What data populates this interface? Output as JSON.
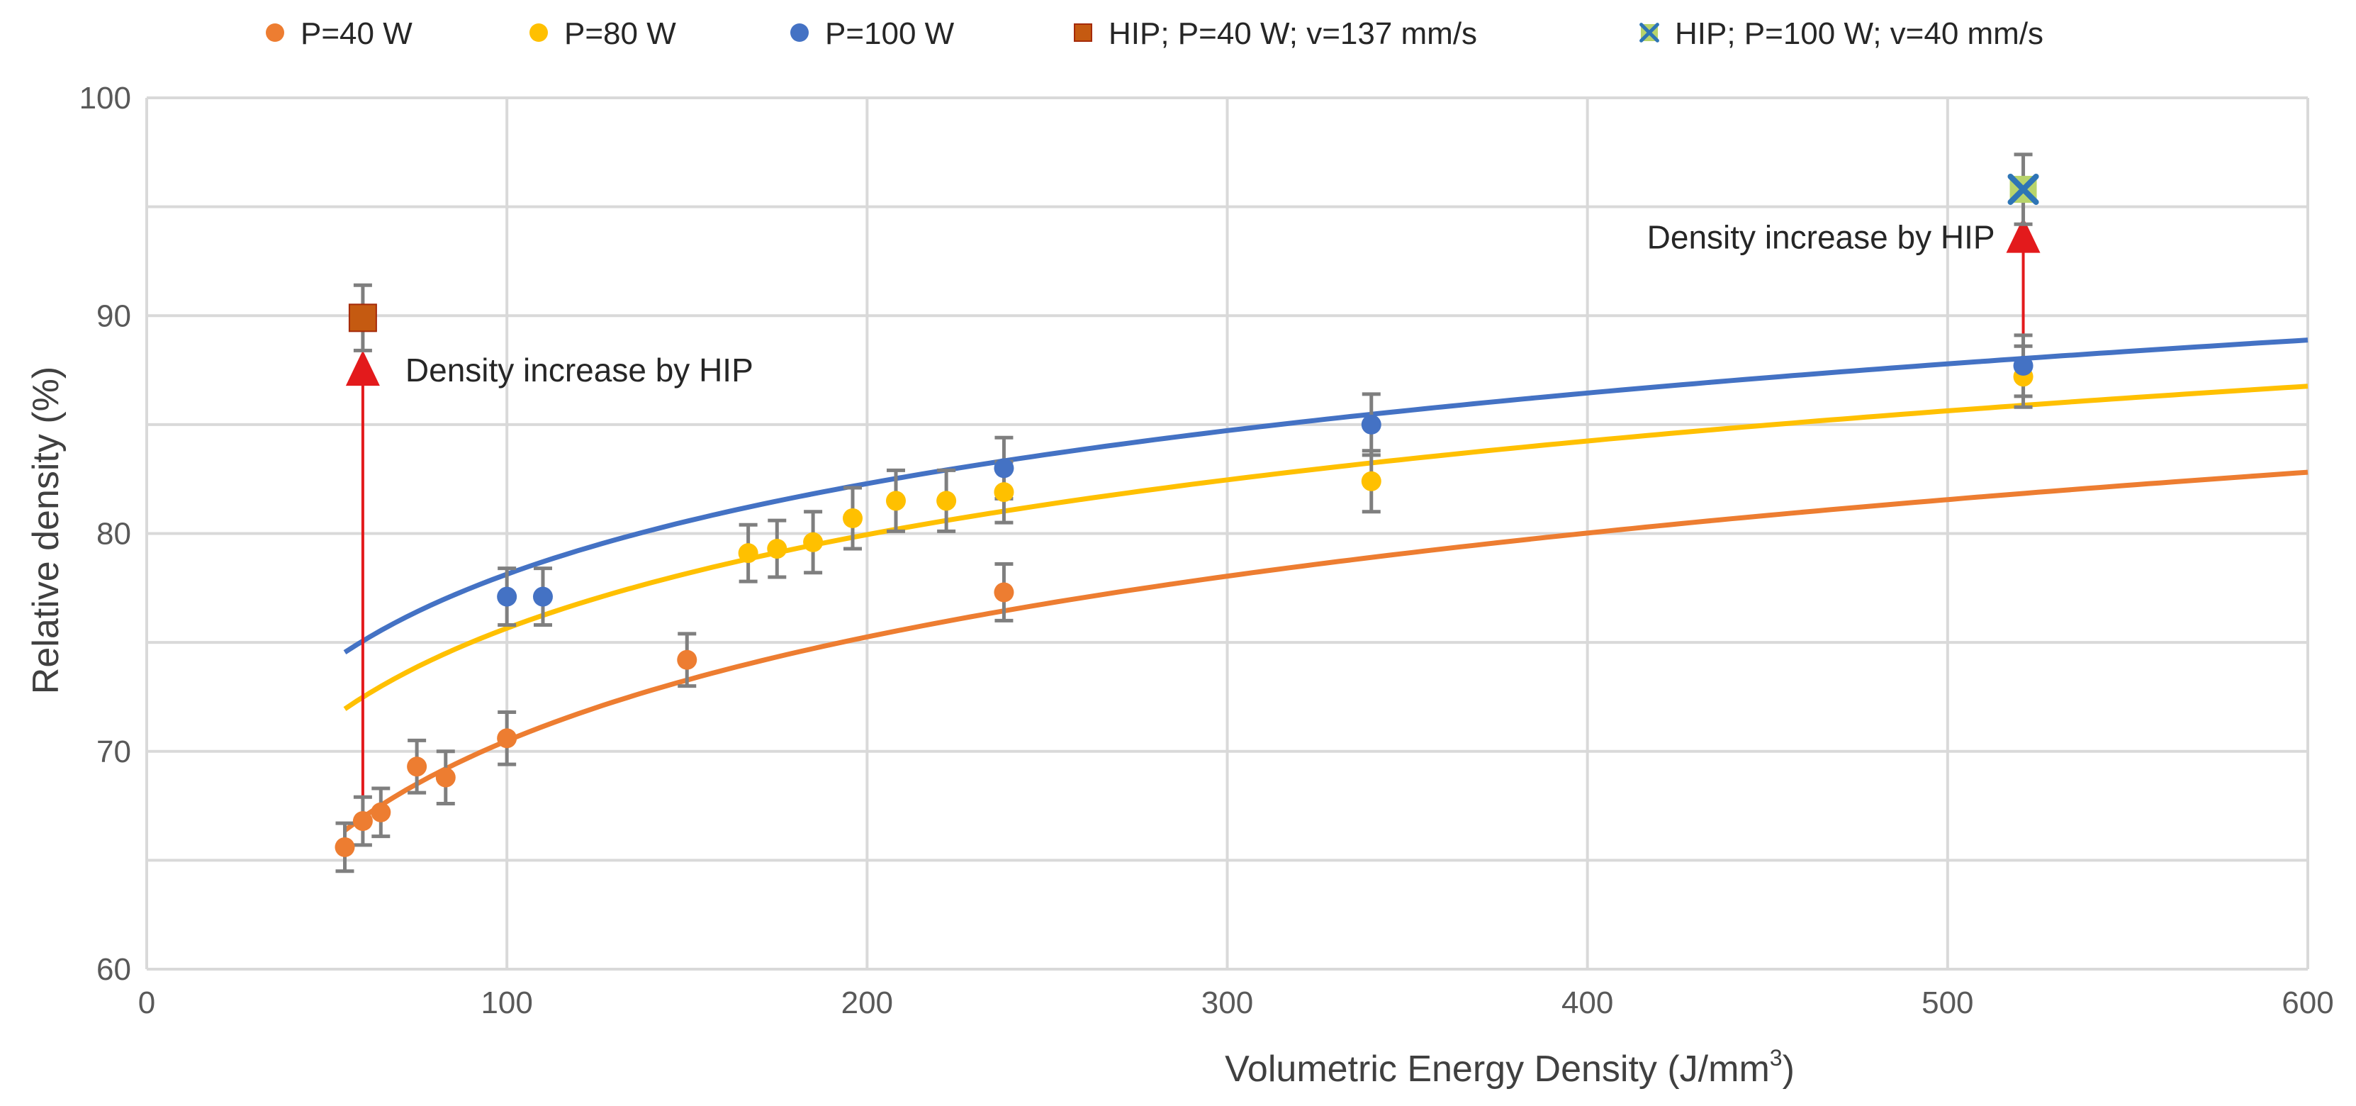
{
  "chart_data": {
    "type": "scatter",
    "title": "",
    "xlabel": "Volumetric Energy Density (J/mm",
    "xlabel_superscript": "3",
    "xlabel_suffix": ")",
    "ylabel": "Relative density (%)",
    "xlim": [
      0,
      600
    ],
    "ylim": [
      60,
      100
    ],
    "xticks": [
      0,
      100,
      200,
      300,
      400,
      500,
      600
    ],
    "yticks": [
      60,
      70,
      80,
      90,
      100
    ],
    "grid": true,
    "legend_position": "top",
    "series": [
      {
        "name": "P=40 W",
        "marker": "circle",
        "color": "#ed7d31",
        "x": [
          55,
          60,
          65,
          75,
          83,
          100,
          150,
          238
        ],
        "y": [
          65.6,
          66.8,
          67.2,
          69.3,
          68.8,
          70.6,
          74.2,
          77.3
        ],
        "err": [
          1.1,
          1.1,
          1.1,
          1.2,
          1.2,
          1.2,
          1.2,
          1.3
        ],
        "trend": {
          "type": "log",
          "a": 6.88,
          "b": 38.8,
          "x_from": 55,
          "x_to": 600
        }
      },
      {
        "name": "P=80 W",
        "marker": "circle",
        "color": "#ffc000",
        "x": [
          167,
          175,
          185,
          196,
          208,
          222,
          238,
          340,
          521
        ],
        "y": [
          79.1,
          79.3,
          79.6,
          80.7,
          81.5,
          81.5,
          81.9,
          82.4,
          87.2
        ],
        "err": [
          1.3,
          1.3,
          1.4,
          1.4,
          1.4,
          1.4,
          1.4,
          1.4,
          1.4
        ],
        "trend": {
          "type": "log",
          "a": 6.2,
          "b": 47.1,
          "x_from": 55,
          "x_to": 600
        }
      },
      {
        "name": "P=100 W",
        "marker": "circle",
        "color": "#4472c4",
        "x": [
          100,
          110,
          238,
          340,
          521
        ],
        "y": [
          77.1,
          77.1,
          83.0,
          85.0,
          87.7
        ],
        "err": [
          1.3,
          1.3,
          1.4,
          1.4,
          1.4
        ],
        "trend": {
          "type": "log",
          "a": 6.0,
          "b": 50.5,
          "x_from": 55,
          "x_to": 600
        }
      },
      {
        "name": "HIP; P=40 W; v=137 mm/s",
        "marker": "square",
        "color": "#c55a11",
        "x": [
          60
        ],
        "y": [
          89.9
        ],
        "err": [
          1.5
        ]
      },
      {
        "name": "HIP; P=100 W; v=40 mm/s",
        "marker": "x",
        "color": "#2e75b6",
        "x": [
          521
        ],
        "y": [
          95.8
        ],
        "err": [
          1.6
        ]
      }
    ],
    "annotations": [
      {
        "text": "Density increase by HIP",
        "arrow_x": 60,
        "arrow_from_y": 67.2,
        "arrow_to_y": 87.5,
        "text_side": "right",
        "color": "#e31a1c"
      },
      {
        "text": "Density increase by HIP",
        "arrow_x": 521,
        "arrow_from_y": 87.7,
        "arrow_to_y": 93.6,
        "text_side": "left",
        "color": "#e31a1c"
      }
    ]
  }
}
